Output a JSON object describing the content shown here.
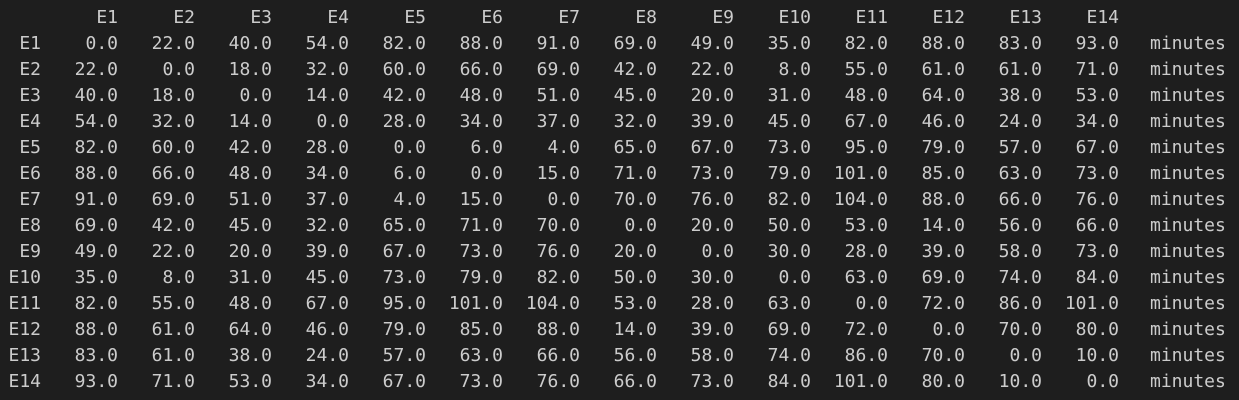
{
  "columns": [
    "E1",
    "E2",
    "E3",
    "E4",
    "E5",
    "E6",
    "E7",
    "E8",
    "E9",
    "E10",
    "E11",
    "E12",
    "E13",
    "E14"
  ],
  "unit": "minutes",
  "rows": [
    {
      "label": "E1",
      "values": [
        "0.0",
        "22.0",
        "40.0",
        "54.0",
        "82.0",
        "88.0",
        "91.0",
        "69.0",
        "49.0",
        "35.0",
        "82.0",
        "88.0",
        "83.0",
        "93.0"
      ]
    },
    {
      "label": "E2",
      "values": [
        "22.0",
        "0.0",
        "18.0",
        "32.0",
        "60.0",
        "66.0",
        "69.0",
        "42.0",
        "22.0",
        "8.0",
        "55.0",
        "61.0",
        "61.0",
        "71.0"
      ]
    },
    {
      "label": "E3",
      "values": [
        "40.0",
        "18.0",
        "0.0",
        "14.0",
        "42.0",
        "48.0",
        "51.0",
        "45.0",
        "20.0",
        "31.0",
        "48.0",
        "64.0",
        "38.0",
        "53.0"
      ]
    },
    {
      "label": "E4",
      "values": [
        "54.0",
        "32.0",
        "14.0",
        "0.0",
        "28.0",
        "34.0",
        "37.0",
        "32.0",
        "39.0",
        "45.0",
        "67.0",
        "46.0",
        "24.0",
        "34.0"
      ]
    },
    {
      "label": "E5",
      "values": [
        "82.0",
        "60.0",
        "42.0",
        "28.0",
        "0.0",
        "6.0",
        "4.0",
        "65.0",
        "67.0",
        "73.0",
        "95.0",
        "79.0",
        "57.0",
        "67.0"
      ]
    },
    {
      "label": "E6",
      "values": [
        "88.0",
        "66.0",
        "48.0",
        "34.0",
        "6.0",
        "0.0",
        "15.0",
        "71.0",
        "73.0",
        "79.0",
        "101.0",
        "85.0",
        "63.0",
        "73.0"
      ]
    },
    {
      "label": "E7",
      "values": [
        "91.0",
        "69.0",
        "51.0",
        "37.0",
        "4.0",
        "15.0",
        "0.0",
        "70.0",
        "76.0",
        "82.0",
        "104.0",
        "88.0",
        "66.0",
        "76.0"
      ]
    },
    {
      "label": "E8",
      "values": [
        "69.0",
        "42.0",
        "45.0",
        "32.0",
        "65.0",
        "71.0",
        "70.0",
        "0.0",
        "20.0",
        "50.0",
        "53.0",
        "14.0",
        "56.0",
        "66.0"
      ]
    },
    {
      "label": "E9",
      "values": [
        "49.0",
        "22.0",
        "20.0",
        "39.0",
        "67.0",
        "73.0",
        "76.0",
        "20.0",
        "0.0",
        "30.0",
        "28.0",
        "39.0",
        "58.0",
        "73.0"
      ]
    },
    {
      "label": "E10",
      "values": [
        "35.0",
        "8.0",
        "31.0",
        "45.0",
        "73.0",
        "79.0",
        "82.0",
        "50.0",
        "30.0",
        "0.0",
        "63.0",
        "69.0",
        "74.0",
        "84.0"
      ]
    },
    {
      "label": "E11",
      "values": [
        "82.0",
        "55.0",
        "48.0",
        "67.0",
        "95.0",
        "101.0",
        "104.0",
        "53.0",
        "28.0",
        "63.0",
        "0.0",
        "72.0",
        "86.0",
        "101.0"
      ]
    },
    {
      "label": "E12",
      "values": [
        "88.0",
        "61.0",
        "64.0",
        "46.0",
        "79.0",
        "85.0",
        "88.0",
        "14.0",
        "39.0",
        "69.0",
        "72.0",
        "0.0",
        "70.0",
        "80.0"
      ]
    },
    {
      "label": "E13",
      "values": [
        "83.0",
        "61.0",
        "38.0",
        "24.0",
        "57.0",
        "63.0",
        "66.0",
        "56.0",
        "58.0",
        "74.0",
        "86.0",
        "70.0",
        "0.0",
        "10.0"
      ]
    },
    {
      "label": "E14",
      "values": [
        "93.0",
        "71.0",
        "53.0",
        "34.0",
        "67.0",
        "73.0",
        "76.0",
        "66.0",
        "73.0",
        "84.0",
        "101.0",
        "80.0",
        "10.0",
        "0.0"
      ]
    }
  ]
}
